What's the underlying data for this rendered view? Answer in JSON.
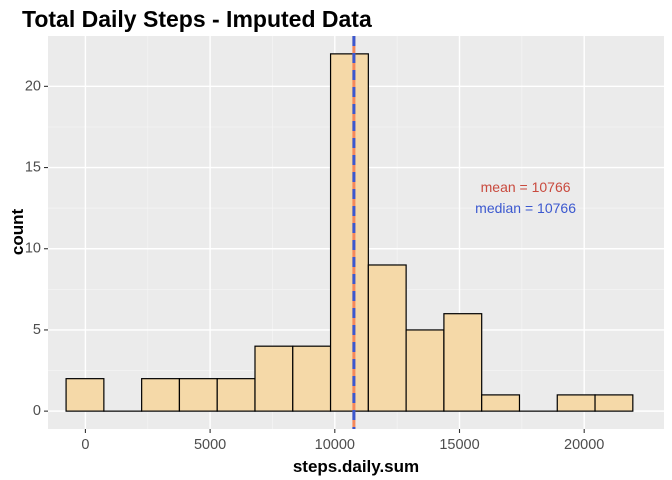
{
  "chart_data": {
    "type": "histogram",
    "title": "Total Daily Steps - Imputed Data",
    "xlabel": "steps.daily.sum",
    "ylabel": "count",
    "xlim": [
      -1500,
      23200
    ],
    "ylim": [
      -1.1,
      23.1
    ],
    "x_ticks": [
      0,
      5000,
      10000,
      15000,
      20000
    ],
    "x_tick_labels": [
      "0",
      "5000",
      "10000",
      "15000",
      "20000"
    ],
    "y_ticks": [
      0,
      5,
      10,
      15,
      20
    ],
    "y_tick_labels": [
      "0",
      "5",
      "10",
      "15",
      "20"
    ],
    "bins": [
      {
        "x0": -775,
        "x1": 740,
        "count": 2
      },
      {
        "x0": 740,
        "x1": 2255,
        "count": 0
      },
      {
        "x0": 2255,
        "x1": 3770,
        "count": 2
      },
      {
        "x0": 3770,
        "x1": 5285,
        "count": 2
      },
      {
        "x0": 5285,
        "x1": 6800,
        "count": 2
      },
      {
        "x0": 6800,
        "x1": 8315,
        "count": 4
      },
      {
        "x0": 8315,
        "x1": 9830,
        "count": 4
      },
      {
        "x0": 9830,
        "x1": 11345,
        "count": 22
      },
      {
        "x0": 11345,
        "x1": 12860,
        "count": 9
      },
      {
        "x0": 12860,
        "x1": 14375,
        "count": 5
      },
      {
        "x0": 14375,
        "x1": 15890,
        "count": 6
      },
      {
        "x0": 15890,
        "x1": 17405,
        "count": 1
      },
      {
        "x0": 17405,
        "x1": 18920,
        "count": 0
      },
      {
        "x0": 18920,
        "x1": 20435,
        "count": 1
      },
      {
        "x0": 20435,
        "x1": 21950,
        "count": 1
      }
    ],
    "vlines": [
      {
        "name": "mean",
        "x": 10766,
        "color": "#f4885b",
        "style": "solid"
      },
      {
        "name": "median",
        "x": 10766,
        "color": "#3b58cf",
        "style": "dashed"
      }
    ],
    "annotations": [
      {
        "text": "mean = 10766",
        "x": 17650,
        "y": 13.8,
        "color": "#c94a3e"
      },
      {
        "text": "median = 10766",
        "x": 17650,
        "y": 12.5,
        "color": "#3b58cf"
      }
    ],
    "bar_fill": "#f5d9a8",
    "bar_stroke": "#000000",
    "panel_background": "#ebebeb",
    "grid": true
  }
}
